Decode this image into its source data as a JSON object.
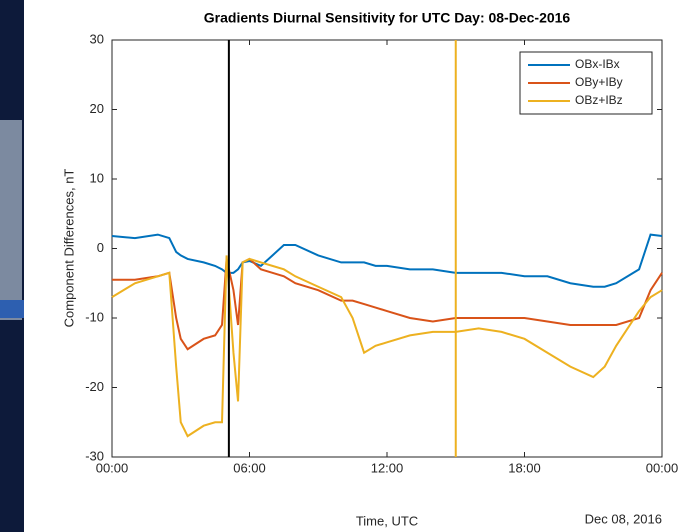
{
  "chart_data": {
    "type": "line",
    "title": "Gradients Diurnal Sensitivity for UTC Day: 08-Dec-2016",
    "x_label": "Time, UTC",
    "y_label": "Component Differences, nT",
    "date_label": "Dec 08, 2016",
    "x": [
      0,
      1,
      2,
      2.5,
      2.8,
      3,
      3.3,
      4,
      4.5,
      4.8,
      5,
      5.3,
      5.5,
      5.7,
      6,
      6.5,
      7,
      7.5,
      8,
      9,
      10,
      10.5,
      11,
      11.5,
      12,
      13,
      14,
      15,
      16,
      17,
      18,
      19,
      20,
      21,
      21.5,
      22,
      23,
      23.5,
      24
    ],
    "series": [
      {
        "name": "OBx-IBx",
        "color": "#0072bd",
        "values": [
          1.8,
          1.5,
          2,
          1.5,
          -0.5,
          -1,
          -1.5,
          -2,
          -2.5,
          -3,
          -3.5,
          -3.5,
          -3,
          -2,
          -1.8,
          -2.5,
          -1,
          0.5,
          0.5,
          -1,
          -2,
          -2,
          -2,
          -2.5,
          -2.5,
          -3,
          -3,
          -3.5,
          -3.5,
          -3.5,
          -4,
          -4,
          -5,
          -5.5,
          -5.5,
          -5,
          -3,
          2,
          1.8
        ]
      },
      {
        "name": "OBy+IBy",
        "color": "#d95319",
        "values": [
          -4.5,
          -4.5,
          -4,
          -3.5,
          -10,
          -13,
          -14.5,
          -13,
          -12.5,
          -11,
          -1.5,
          -6,
          -11,
          -2,
          -1.5,
          -3,
          -3.5,
          -4,
          -5,
          -6,
          -7.5,
          -7.5,
          -8,
          -8.5,
          -9,
          -10,
          -10.5,
          -10,
          -10,
          -10,
          -10,
          -10.5,
          -11,
          -11,
          -11,
          -11,
          -10,
          -6,
          -3.5
        ]
      },
      {
        "name": "OBz+IBz",
        "color": "#edb120",
        "values": [
          -7,
          -5,
          -4,
          -3.5,
          -17,
          -25,
          -27,
          -25.5,
          -25,
          -25,
          -1,
          -15,
          -22,
          -2,
          -1.5,
          -2,
          -2.5,
          -3,
          -4,
          -5.5,
          -7,
          -10,
          -15,
          -14,
          -13.5,
          -12.5,
          -12,
          -12,
          -11.5,
          -12,
          -13,
          -15,
          -17,
          -18.5,
          -17,
          -14,
          -9,
          -7,
          -6
        ]
      }
    ],
    "vlines": [
      {
        "x": 5.1,
        "color": "#000000"
      },
      {
        "x": 15,
        "color": "#edb120"
      }
    ],
    "xlim": [
      0,
      24
    ],
    "xticks": [
      {
        "value": 0,
        "label": "00:00"
      },
      {
        "value": 6,
        "label": "06:00"
      },
      {
        "value": 12,
        "label": "12:00"
      },
      {
        "value": 18,
        "label": "18:00"
      },
      {
        "value": 24,
        "label": "00:00"
      }
    ],
    "ylim": [
      -30,
      30
    ],
    "yticks": [
      -30,
      -20,
      -10,
      0,
      10,
      20,
      30
    ],
    "legend": "upper-right"
  }
}
